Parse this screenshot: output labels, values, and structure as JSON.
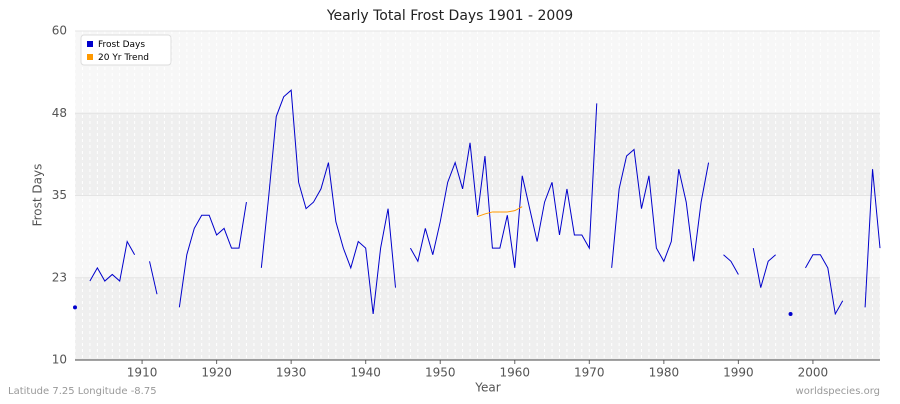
{
  "chart_data": {
    "type": "line",
    "title": "Yearly Total Frost Days 1901 - 2009",
    "xlabel": "Year",
    "ylabel": "Frost Days",
    "x": [
      1901,
      1902,
      1903,
      1904,
      1905,
      1906,
      1907,
      1908,
      1909,
      1910,
      1911,
      1912,
      1913,
      1914,
      1915,
      1916,
      1917,
      1918,
      1919,
      1920,
      1921,
      1922,
      1923,
      1924,
      1925,
      1926,
      1927,
      1928,
      1929,
      1930,
      1931,
      1932,
      1933,
      1934,
      1935,
      1936,
      1937,
      1938,
      1939,
      1940,
      1941,
      1942,
      1943,
      1944,
      1945,
      1946,
      1947,
      1948,
      1949,
      1950,
      1951,
      1952,
      1953,
      1954,
      1955,
      1956,
      1957,
      1958,
      1959,
      1960,
      1961,
      1962,
      1963,
      1964,
      1965,
      1966,
      1967,
      1968,
      1969,
      1970,
      1971,
      1972,
      1973,
      1974,
      1975,
      1976,
      1977,
      1978,
      1979,
      1980,
      1981,
      1982,
      1983,
      1984,
      1985,
      1986,
      1987,
      1988,
      1989,
      1990,
      1991,
      1992,
      1993,
      1994,
      1995,
      1996,
      1997,
      1998,
      1999,
      2000,
      2001,
      2002,
      2003,
      2004,
      2005,
      2006,
      2007,
      2008,
      2009
    ],
    "series": [
      {
        "name": "Frost Days",
        "color": "#0000cc",
        "values": [
          18,
          null,
          22,
          24,
          22,
          23,
          22,
          28,
          26,
          null,
          25,
          20,
          null,
          null,
          18,
          26,
          30,
          32,
          32,
          29,
          30,
          27,
          27,
          34,
          null,
          24,
          35,
          47,
          50,
          51,
          37,
          33,
          34,
          36,
          40,
          31,
          27,
          24,
          28,
          27,
          17,
          27,
          33,
          21,
          null,
          27,
          25,
          30,
          26,
          31,
          37,
          40,
          36,
          43,
          32,
          41,
          27,
          27,
          32,
          24,
          38,
          33,
          28,
          34,
          37,
          29,
          36,
          29,
          29,
          27,
          49,
          null,
          24,
          36,
          41,
          42,
          33,
          38,
          27,
          25,
          28,
          39,
          34,
          25,
          34,
          40,
          null,
          26,
          25,
          23,
          null,
          27,
          21,
          25,
          26,
          null,
          17,
          null,
          24,
          26,
          26,
          24,
          17,
          19,
          null,
          null,
          18,
          39,
          27
        ]
      },
      {
        "name": "20 Yr Trend",
        "color": "#ff9900",
        "values": [
          null,
          null,
          null,
          null,
          null,
          null,
          null,
          null,
          null,
          null,
          null,
          null,
          null,
          null,
          null,
          null,
          null,
          null,
          null,
          null,
          null,
          null,
          null,
          null,
          null,
          null,
          null,
          null,
          null,
          null,
          null,
          null,
          null,
          null,
          null,
          null,
          null,
          null,
          null,
          null,
          null,
          null,
          null,
          null,
          null,
          null,
          null,
          null,
          null,
          null,
          null,
          null,
          null,
          null,
          31.8,
          32.2,
          32.5,
          32.5,
          32.5,
          32.7,
          33.3,
          null,
          null,
          null,
          null,
          null,
          null,
          null,
          null,
          null,
          null,
          null,
          null,
          null,
          null,
          null,
          null,
          null,
          null,
          null,
          null,
          null,
          null,
          null,
          null,
          null,
          null,
          null,
          null,
          null,
          null,
          null,
          null,
          null,
          null,
          null,
          null,
          null,
          null,
          null,
          null,
          null,
          null,
          null,
          null,
          null,
          null,
          null,
          null
        ]
      }
    ],
    "xlim": [
      1901,
      2009
    ],
    "xticks": [
      1910,
      1920,
      1930,
      1940,
      1950,
      1960,
      1970,
      1980,
      1990,
      2000
    ],
    "ylim": [
      10,
      60
    ],
    "yticks": [
      10,
      {
        "value": 22.5,
        "label": "23"
      },
      35,
      {
        "value": 47.5,
        "label": "48"
      },
      60
    ],
    "grid": true,
    "legend": "upper left",
    "footer_left": "Latitude 7.25 Longitude -8.75",
    "footer_right": "worldspecies.org"
  }
}
